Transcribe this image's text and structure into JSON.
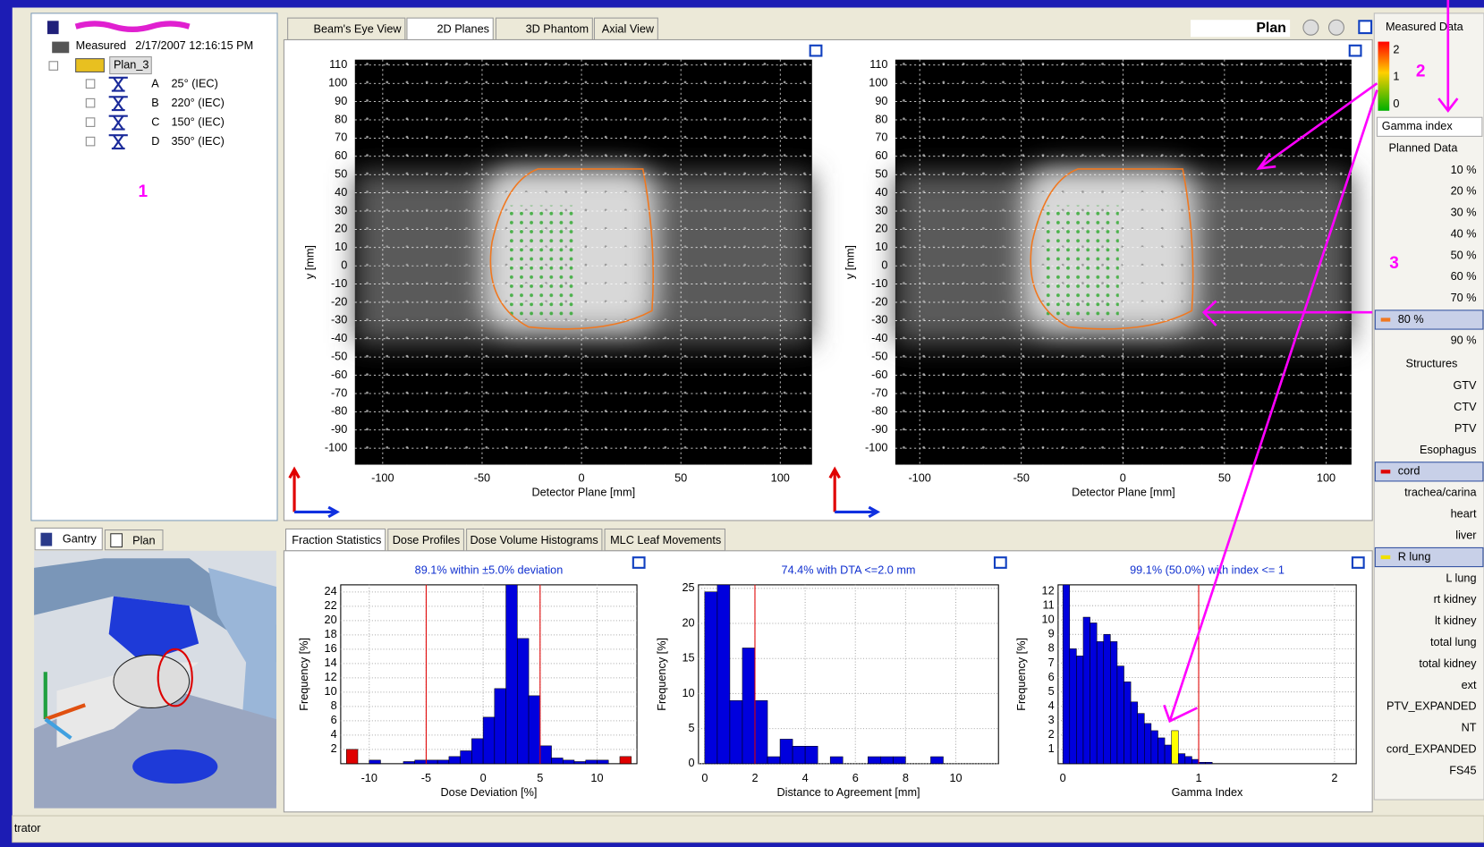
{
  "tree": {
    "root": "Measured",
    "date": "2/17/2007 12:16:15 PM",
    "plan": "Plan_3",
    "beams": [
      {
        "id": "A",
        "angle": "25° (IEC)"
      },
      {
        "id": "B",
        "angle": "220° (IEC)"
      },
      {
        "id": "C",
        "angle": "150° (IEC)"
      },
      {
        "id": "D",
        "angle": "350° (IEC)"
      }
    ]
  },
  "annotations": [
    "1",
    "2",
    "3"
  ],
  "top_tabs": [
    "Beam's Eye View",
    "2D Planes",
    "3D Phantom",
    "Axial View"
  ],
  "view_label": "Plan",
  "planes": [
    {
      "x_label": "Detector Plane [mm]",
      "y_label": "y [mm]",
      "xlim": [
        -114,
        116
      ],
      "ylim": [
        -109,
        113
      ],
      "xticks": [
        -100,
        -50,
        0,
        50,
        100
      ],
      "yticks": [
        -100,
        -90,
        -80,
        -70,
        -60,
        -50,
        -40,
        -30,
        -20,
        -10,
        0,
        10,
        20,
        30,
        40,
        50,
        60,
        70,
        80,
        90,
        100,
        110
      ]
    },
    {
      "x_label": "Detector Plane [mm]",
      "y_label": "y [mm]",
      "xlim": [
        -112,
        112.5
      ],
      "ylim": [
        -109,
        113
      ],
      "xticks": [
        -100,
        -50,
        0,
        50,
        100
      ],
      "yticks": [
        -100,
        -90,
        -80,
        -70,
        -60,
        -50,
        -40,
        -30,
        -20,
        -10,
        0,
        10,
        20,
        30,
        40,
        50,
        60,
        70,
        80,
        90,
        100,
        110
      ]
    }
  ],
  "gantry_tabs": [
    "Gantry",
    "Plan"
  ],
  "bottom_tabs": [
    "Fraction Statistics",
    "Dose Profiles",
    "Dose Volume Histograms",
    "MLC Leaf Movements"
  ],
  "histograms": [
    {
      "title": "89.1% within ±5.0% deviation",
      "x_label": "Dose Deviation [%]",
      "y_label": "Frequency [%]",
      "color": "#0000dd",
      "xlim": [
        -12.5,
        13.5
      ],
      "ylim": [
        0,
        25
      ],
      "xticks": [
        -10,
        -5,
        0,
        5,
        10
      ],
      "yticks": [
        2,
        4,
        6,
        8,
        10,
        12,
        14,
        16,
        18,
        20,
        22,
        24
      ],
      "limits": [
        -5,
        5
      ],
      "bins": [
        -12,
        -11,
        -10,
        -9,
        -8,
        -7,
        -6,
        -5,
        -4,
        -3,
        -2,
        -1,
        0,
        1,
        2,
        3,
        4,
        5,
        6,
        7,
        8,
        9,
        10,
        11,
        12,
        13
      ],
      "counts": [
        2,
        0,
        0.5,
        0,
        0,
        0.3,
        0.5,
        0.5,
        0.5,
        1,
        1.8,
        3.5,
        6.5,
        10.5,
        25,
        17.5,
        9.5,
        2.5,
        0.8,
        0.5,
        0.3,
        0.5,
        0.5,
        0,
        1
      ],
      "highlight": [
        {
          "bin": 0,
          "color": "#e00000"
        },
        {
          "bin": 24,
          "color": "#e00000"
        }
      ]
    },
    {
      "title": "74.4% with DTA <=2.0 mm",
      "x_label": "Distance to Agreement [mm]",
      "y_label": "Frequency [%]",
      "color": "#0000dd",
      "xlim": [
        -0.25,
        11.7
      ],
      "ylim": [
        0,
        25.5
      ],
      "xticks": [
        0,
        2,
        4,
        6,
        8,
        10
      ],
      "yticks": [
        0,
        5,
        10,
        15,
        20,
        25
      ],
      "limits": [
        2
      ],
      "bins": [
        0,
        0.5,
        1,
        1.5,
        2,
        2.5,
        3,
        3.5,
        4,
        4.5,
        5,
        5.5,
        6,
        6.5,
        7,
        7.5,
        8,
        8.5,
        9,
        9.5
      ],
      "counts": [
        24.5,
        25.5,
        9,
        16.5,
        9,
        1,
        3.5,
        2.5,
        2.5,
        0,
        1,
        0,
        0,
        1,
        1,
        1,
        0,
        0,
        1
      ],
      "highlight": []
    },
    {
      "title": "99.1% (50.0%) with index <= 1",
      "x_label": "Gamma Index",
      "y_label": "Frequency [%]",
      "color": "#0000dd",
      "xlim": [
        -0.035,
        2.16
      ],
      "ylim": [
        0,
        12.45
      ],
      "xticks": [
        0,
        1,
        2
      ],
      "yticks": [
        1,
        2,
        3,
        4,
        5,
        6,
        7,
        8,
        9,
        10,
        11,
        12
      ],
      "limits": [
        1
      ],
      "bins": [
        0,
        0.05,
        0.1,
        0.15,
        0.2,
        0.25,
        0.3,
        0.35,
        0.4,
        0.45,
        0.5,
        0.55,
        0.6,
        0.65,
        0.7,
        0.75,
        0.8,
        0.85,
        0.9,
        0.95,
        1,
        1.05,
        1.1
      ],
      "counts": [
        12.45,
        8,
        7.5,
        10.2,
        9.8,
        8.5,
        9,
        8.5,
        6.8,
        5.7,
        4.3,
        3.5,
        2.8,
        2.3,
        1.8,
        1.3,
        2.3,
        0.7,
        0.5,
        0.3,
        0.1,
        0.1
      ],
      "highlight": [
        {
          "bin": 16,
          "color": "#ffff00"
        }
      ]
    }
  ],
  "legend": {
    "title": "Measured Data",
    "scale": [
      2,
      1,
      0
    ],
    "mode": "Gamma index"
  },
  "planned": {
    "title": "Planned Data",
    "levels": [
      {
        "label": "10 %"
      },
      {
        "label": "20 %"
      },
      {
        "label": "30 %"
      },
      {
        "label": "40 %"
      },
      {
        "label": "50 %"
      },
      {
        "label": "60 %"
      },
      {
        "label": "70 %"
      },
      {
        "label": "80 %",
        "color": "#f07820"
      },
      {
        "label": "90 %"
      }
    ]
  },
  "structures": {
    "title": "Structures",
    "items": [
      {
        "name": "GTV"
      },
      {
        "name": "CTV"
      },
      {
        "name": "PTV"
      },
      {
        "name": "Esophagus"
      },
      {
        "name": "cord",
        "color": "#e00000"
      },
      {
        "name": "trachea/carina"
      },
      {
        "name": "heart"
      },
      {
        "name": "liver"
      },
      {
        "name": "R lung",
        "color": "#f0e000"
      },
      {
        "name": "L lung"
      },
      {
        "name": "rt kidney"
      },
      {
        "name": "lt kidney"
      },
      {
        "name": "total lung"
      },
      {
        "name": "total kidney"
      },
      {
        "name": "ext"
      },
      {
        "name": "PTV_EXPANDED"
      },
      {
        "name": "NT"
      },
      {
        "name": "cord_EXPANDED"
      },
      {
        "name": "FS45"
      }
    ]
  },
  "status": "trator"
}
